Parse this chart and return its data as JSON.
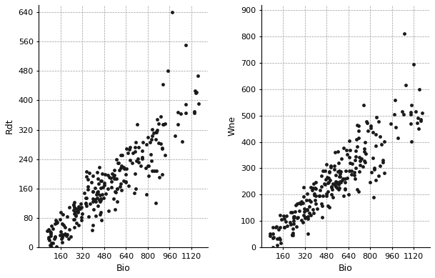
{
  "plot1": {
    "xlabel": "Bio",
    "ylabel": "Rdt",
    "xlim": [
      0,
      1240
    ],
    "ylim": [
      0,
      660
    ],
    "xticks": [
      160,
      320,
      480,
      640,
      800,
      960,
      1120
    ],
    "yticks": [
      0,
      80,
      160,
      240,
      320,
      400,
      480,
      560,
      640
    ],
    "scatter_color": "#1a1a1a",
    "marker_size": 3.5
  },
  "plot2": {
    "xlabel": "Bio",
    "ylabel": "Wne",
    "xlim": [
      0,
      1240
    ],
    "ylim": [
      0,
      920
    ],
    "xticks": [
      160,
      320,
      480,
      640,
      800,
      960,
      1120
    ],
    "yticks": [
      0,
      100,
      200,
      300,
      400,
      500,
      600,
      700,
      800,
      900
    ],
    "scatter_color": "#1a1a1a",
    "marker_size": 3.5
  },
  "background_color": "#ffffff",
  "figsize": [
    6.09,
    3.89
  ],
  "dpi": 100
}
